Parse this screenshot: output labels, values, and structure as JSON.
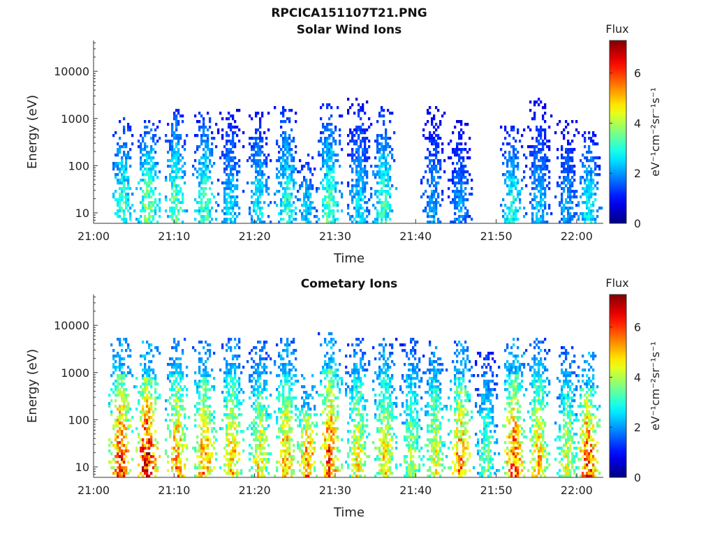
{
  "figure_title": "RPCICA151107T21.PNG",
  "chart_data": [
    {
      "type": "heatmap",
      "title": "Solar Wind Ions",
      "xlabel": "Time",
      "ylabel": "Energy (eV)",
      "x_ticks": [
        "21:00",
        "21:10",
        "21:20",
        "21:30",
        "21:40",
        "21:50",
        "22:00"
      ],
      "x_tick_minutes": [
        0,
        10,
        20,
        30,
        40,
        50,
        60
      ],
      "xlim_minutes": [
        0,
        63.3
      ],
      "y_scale": "log",
      "y_ticks": [
        "10",
        "100",
        "1000",
        "10000"
      ],
      "y_tick_values": [
        10,
        100,
        1000,
        10000
      ],
      "ylim": [
        6,
        45000
      ],
      "colorbar": {
        "label": "Flux",
        "unit": "eV⁻¹cm⁻²sr⁻¹s⁻¹",
        "ticks": [
          "0",
          "2",
          "4",
          "6"
        ],
        "tick_values": [
          0,
          2,
          4,
          6
        ],
        "range": [
          0,
          7.3
        ],
        "colormap": "jet"
      },
      "bursts": [
        {
          "t": 3.6,
          "flux": 3.3,
          "top": 600
        },
        {
          "t": 6.8,
          "flux": 3.8,
          "top": 500
        },
        {
          "t": 10.2,
          "flux": 3.5,
          "top": 900
        },
        {
          "t": 13.8,
          "flux": 3.3,
          "top": 800
        },
        {
          "t": 17.0,
          "flux": 2.6,
          "top": 900
        },
        {
          "t": 20.5,
          "flux": 2.8,
          "top": 800
        },
        {
          "t": 24.0,
          "flux": 3.2,
          "top": 1000
        },
        {
          "t": 26.5,
          "flux": 2.5,
          "top": 100
        },
        {
          "t": 29.3,
          "flux": 3.4,
          "top": 1200
        },
        {
          "t": 33.0,
          "flux": 2.6,
          "top": 1500
        },
        {
          "t": 36.0,
          "flux": 3.3,
          "top": 1000
        },
        {
          "t": 42.2,
          "flux": 2.2,
          "top": 1000
        },
        {
          "t": 45.5,
          "flux": 2.1,
          "top": 500
        },
        {
          "t": 52.0,
          "flux": 3.0,
          "top": 400
        },
        {
          "t": 55.3,
          "flux": 2.4,
          "top": 1500
        },
        {
          "t": 58.8,
          "flux": 2.2,
          "top": 500
        },
        {
          "t": 61.5,
          "flux": 2.9,
          "top": 300
        }
      ]
    },
    {
      "type": "heatmap",
      "title": "Cometary Ions",
      "xlabel": "Time",
      "ylabel": "Energy (eV)",
      "x_ticks": [
        "21:00",
        "21:10",
        "21:20",
        "21:30",
        "21:40",
        "21:50",
        "22:00"
      ],
      "x_tick_minutes": [
        0,
        10,
        20,
        30,
        40,
        50,
        60
      ],
      "xlim_minutes": [
        0,
        63.3
      ],
      "y_scale": "log",
      "y_ticks": [
        "10",
        "100",
        "1000",
        "10000"
      ],
      "y_tick_values": [
        10,
        100,
        1000,
        10000
      ],
      "ylim": [
        6,
        45000
      ],
      "colorbar": {
        "label": "Flux",
        "unit": "eV⁻¹cm⁻²sr⁻¹s⁻¹",
        "ticks": [
          "0",
          "2",
          "4",
          "6"
        ],
        "tick_values": [
          0,
          2,
          4,
          6
        ],
        "range": [
          0,
          7.3
        ],
        "colormap": "jet"
      },
      "bursts": [
        {
          "t": 3.4,
          "flux": 6.3,
          "top": 3000
        },
        {
          "t": 6.6,
          "flux": 6.8,
          "top": 2500
        },
        {
          "t": 10.4,
          "flux": 5.6,
          "top": 3000
        },
        {
          "t": 13.8,
          "flux": 5.6,
          "top": 2500
        },
        {
          "t": 17.2,
          "flux": 5.3,
          "top": 3000
        },
        {
          "t": 20.6,
          "flux": 4.8,
          "top": 2500
        },
        {
          "t": 23.9,
          "flux": 5.4,
          "top": 3000
        },
        {
          "t": 26.6,
          "flux": 5.6,
          "top": 500
        },
        {
          "t": 29.3,
          "flux": 6.1,
          "top": 4000
        },
        {
          "t": 32.8,
          "flux": 4.8,
          "top": 3000
        },
        {
          "t": 36.2,
          "flux": 4.9,
          "top": 3000
        },
        {
          "t": 39.5,
          "flux": 4.2,
          "top": 3000
        },
        {
          "t": 42.4,
          "flux": 4.6,
          "top": 2500
        },
        {
          "t": 45.6,
          "flux": 5.6,
          "top": 2500
        },
        {
          "t": 48.8,
          "flux": 3.6,
          "top": 1500
        },
        {
          "t": 52.2,
          "flux": 6.0,
          "top": 3000
        },
        {
          "t": 55.2,
          "flux": 5.2,
          "top": 3000
        },
        {
          "t": 58.8,
          "flux": 4.4,
          "top": 2000
        },
        {
          "t": 61.4,
          "flux": 6.1,
          "top": 1500
        }
      ]
    }
  ]
}
